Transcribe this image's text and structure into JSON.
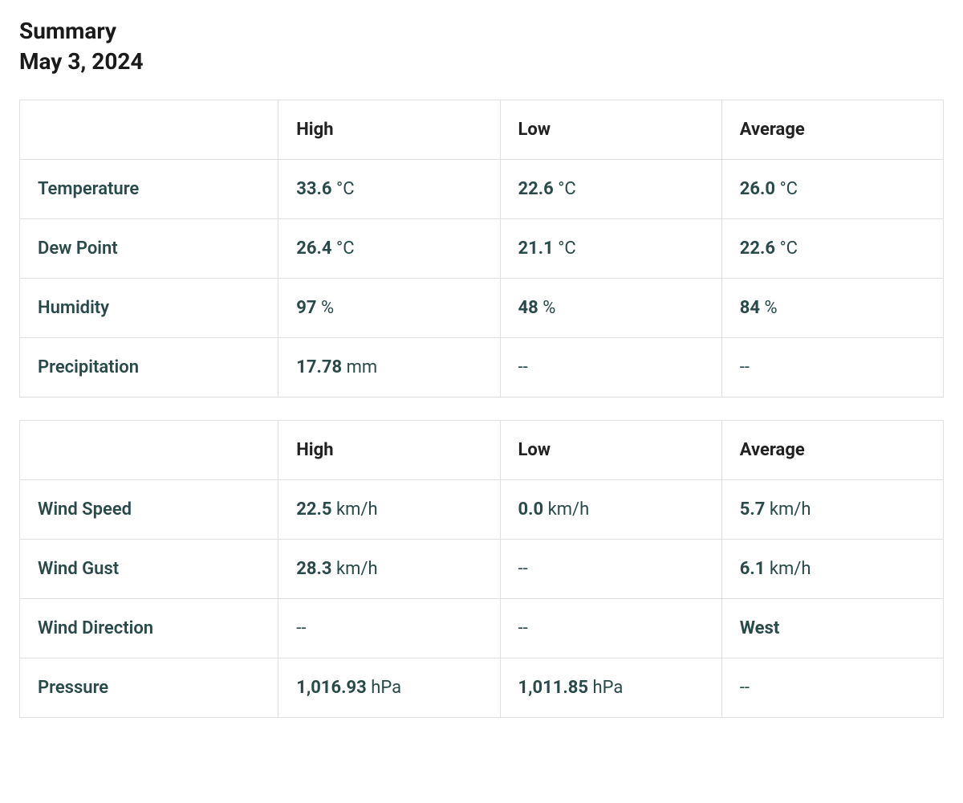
{
  "header": {
    "title": "Summary",
    "date": "May 3, 2024"
  },
  "columns": {
    "high": "High",
    "low": "Low",
    "average": "Average"
  },
  "table1": {
    "rows": {
      "temperature": {
        "label": "Temperature",
        "high_val": "33.6",
        "high_unit": " °C",
        "low_val": "22.6",
        "low_unit": " °C",
        "avg_val": "26.0",
        "avg_unit": " °C"
      },
      "dewpoint": {
        "label": "Dew Point",
        "high_val": "26.4",
        "high_unit": " °C",
        "low_val": "21.1",
        "low_unit": " °C",
        "avg_val": "22.6",
        "avg_unit": " °C"
      },
      "humidity": {
        "label": "Humidity",
        "high_val": "97",
        "high_unit": " %",
        "low_val": "48",
        "low_unit": " %",
        "avg_val": "84",
        "avg_unit": " %"
      },
      "precipitation": {
        "label": "Precipitation",
        "high_val": "17.78",
        "high_unit": " mm",
        "low": "--",
        "avg": "--"
      }
    }
  },
  "table2": {
    "rows": {
      "windspeed": {
        "label": "Wind Speed",
        "high_val": "22.5",
        "high_unit": " km/h",
        "low_val": "0.0",
        "low_unit": " km/h",
        "avg_val": "5.7",
        "avg_unit": " km/h"
      },
      "windgust": {
        "label": "Wind Gust",
        "high_val": "28.3",
        "high_unit": " km/h",
        "low": "--",
        "avg_val": "6.1",
        "avg_unit": " km/h"
      },
      "winddirection": {
        "label": "Wind Direction",
        "high": "--",
        "low": "--",
        "avg_val": "West",
        "avg_unit": ""
      },
      "pressure": {
        "label": "Pressure",
        "high_val": "1,016.93",
        "high_unit": " hPa",
        "low_val": "1,011.85",
        "low_unit": " hPa",
        "avg": "--"
      }
    }
  },
  "styling": {
    "text_color": "#2a4a4a",
    "header_color": "#1a1a1a",
    "border_color": "#e0e0e0",
    "background": "#ffffff",
    "title_fontsize": 28,
    "cell_fontsize": 22,
    "value_fontweight": 700,
    "unit_fontweight": 400,
    "label_fontweight": 600
  }
}
